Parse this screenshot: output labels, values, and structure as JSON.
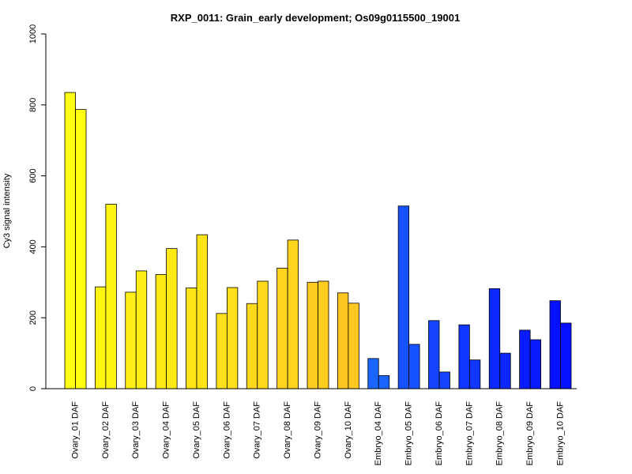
{
  "chart_data": {
    "type": "bar",
    "title": "RXP_0011: Grain_early development; Os09g0115500_19001",
    "xlabel": "",
    "ylabel": "Cy3 signal intensity",
    "ylim": [
      0,
      1000
    ],
    "yticks": [
      0,
      200,
      400,
      600,
      800,
      1000
    ],
    "grid": false,
    "legend": "none",
    "categories": [
      "Ovary_01 DAF",
      "Ovary_02 DAF",
      "Ovary_03 DAF",
      "Ovary_04 DAF",
      "Ovary_05 DAF",
      "Ovary_06 DAF",
      "Ovary_07 DAF",
      "Ovary_08 DAF",
      "Ovary_09 DAF",
      "Ovary_10 DAF",
      "Embryo_04 DAF",
      "Embryo_05 DAF",
      "Embryo_06 DAF",
      "Embryo_07 DAF",
      "Embryo_08 DAF",
      "Embryo_09 DAF",
      "Embryo_10 DAF"
    ],
    "colors": [
      "#FFFF0F",
      "#FFF512",
      "#FFEF14",
      "#FFEA16",
      "#FFE518",
      "#FFE01A",
      "#FFDA1C",
      "#FFD41D",
      "#FFCD1F",
      "#FFC820",
      "#1A66FF",
      "#1652FF",
      "#1444FF",
      "#1036FF",
      "#0C28FF",
      "#081CFF",
      "#0410FF"
    ],
    "series": [
      {
        "values": [
          835,
          287,
          272,
          322,
          284,
          212,
          240,
          340,
          300,
          270,
          85,
          515,
          192,
          180,
          282,
          165,
          248
        ]
      },
      {
        "values": [
          787,
          520,
          332,
          395,
          434,
          285,
          303,
          419,
          303,
          241,
          37,
          125,
          47,
          81,
          100,
          138,
          185
        ]
      }
    ]
  }
}
